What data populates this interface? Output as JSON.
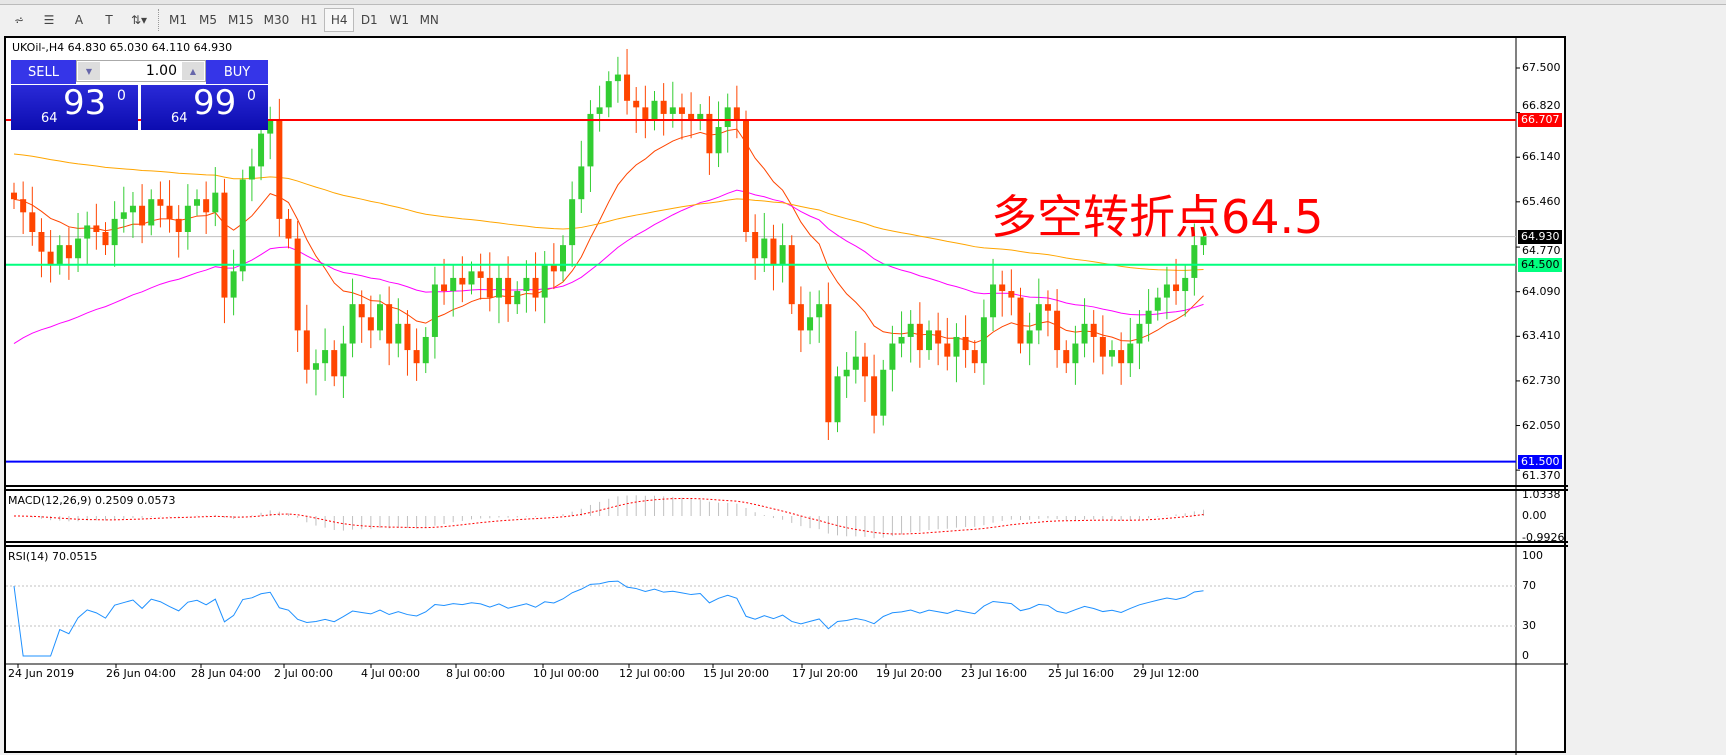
{
  "toolbar": {
    "tools": [
      {
        "icon": "fibonacci-expansion-icon"
      },
      {
        "icon": "fibonacci-lines-icon"
      },
      {
        "icon": "text-icon",
        "label": "A"
      },
      {
        "icon": "text-label-icon",
        "label": "T"
      },
      {
        "icon": "arrows-dropdown-icon"
      }
    ],
    "timeframes": [
      "M1",
      "M5",
      "M15",
      "M30",
      "H1",
      "H4",
      "D1",
      "W1",
      "MN"
    ],
    "active": "H4"
  },
  "chart": {
    "header": "UKOil-,H4  64.830 65.030 64.110 64.930",
    "trade": {
      "sell": "SELL",
      "buy": "BUY",
      "lot": "1.00",
      "sell_big": "64",
      "sell_pips": "93",
      "sell_frac": "0",
      "buy_big": "64",
      "buy_pips": "99",
      "buy_frac": "0"
    },
    "annotation": "多空转折点64.5",
    "price_ticks": [
      "67.500",
      "66.820",
      "66.140",
      "65.460",
      "64.770",
      "64.090",
      "63.410",
      "62.730",
      "62.050",
      "61.370"
    ],
    "levels": [
      {
        "price": 66.707,
        "label": "66.707",
        "color": "#ff0000"
      },
      {
        "price": 64.5,
        "label": "64.500",
        "color": "#00ff7f"
      },
      {
        "price": 61.5,
        "label": "61.500",
        "color": "#0000ff"
      }
    ],
    "current": {
      "price": 64.93,
      "label": "64.930"
    },
    "time_ticks": [
      "24 Jun 2019",
      "26 Jun 04:00",
      "28 Jun 04:00",
      "2 Jul 00:00",
      "4 Jul 00:00",
      "8 Jul 00:00",
      "10 Jul 00:00",
      "12 Jul 00:00",
      "15 Jul 20:00",
      "17 Jul 20:00",
      "19 Jul 20:00",
      "23 Jul 16:00",
      "25 Jul 16:00",
      "29 Jul 12:00"
    ],
    "colors": {
      "bull": "#32cd32",
      "bear": "#ff4500",
      "ma_fast": "#ff4500",
      "ma_mid": "#ff00ff",
      "ma_slow": "#ffa500"
    },
    "closes": [
      65.5,
      65.3,
      65.0,
      64.7,
      64.5,
      64.8,
      64.6,
      64.9,
      65.1,
      65.0,
      64.8,
      65.2,
      65.3,
      65.4,
      65.1,
      65.5,
      65.4,
      65.2,
      65.0,
      65.4,
      65.5,
      65.3,
      65.6,
      64.0,
      64.4,
      65.8,
      66.0,
      66.5,
      66.7,
      65.2,
      64.9,
      63.5,
      62.9,
      63.0,
      63.2,
      62.8,
      63.3,
      63.9,
      63.7,
      63.5,
      63.9,
      63.3,
      63.6,
      63.2,
      63.0,
      63.4,
      64.2,
      64.1,
      64.3,
      64.2,
      64.4,
      64.3,
      64.0,
      64.3,
      63.9,
      64.1,
      64.3,
      64.0,
      64.5,
      64.4,
      64.8,
      65.5,
      66.0,
      66.8,
      66.9,
      67.3,
      67.4,
      67.0,
      66.9,
      66.7,
      67.0,
      66.8,
      66.9,
      66.8,
      66.7,
      66.8,
      66.2,
      66.6,
      66.9,
      66.7,
      65.0,
      64.6,
      64.9,
      64.5,
      64.8,
      63.9,
      63.5,
      63.7,
      63.9,
      62.1,
      62.8,
      62.9,
      63.1,
      62.8,
      62.2,
      62.9,
      63.3,
      63.4,
      63.6,
      63.2,
      63.5,
      63.3,
      63.1,
      63.4,
      63.2,
      63.0,
      63.7,
      64.2,
      64.1,
      64.0,
      63.3,
      63.5,
      63.9,
      63.8,
      63.2,
      63.0,
      63.3,
      63.6,
      63.4,
      63.1,
      63.2,
      63.0,
      63.3,
      63.6,
      63.8,
      64.0,
      64.2,
      64.1,
      64.3,
      64.8,
      64.93
    ]
  },
  "macd": {
    "label": "MACD(12,26,9) 0.2509 0.0573",
    "ticks": [
      "1.0338",
      "0.00",
      "-0.9926"
    ]
  },
  "rsi": {
    "label": "RSI(14) 70.0515",
    "ticks": [
      "100",
      "70",
      "30",
      "0"
    ]
  }
}
